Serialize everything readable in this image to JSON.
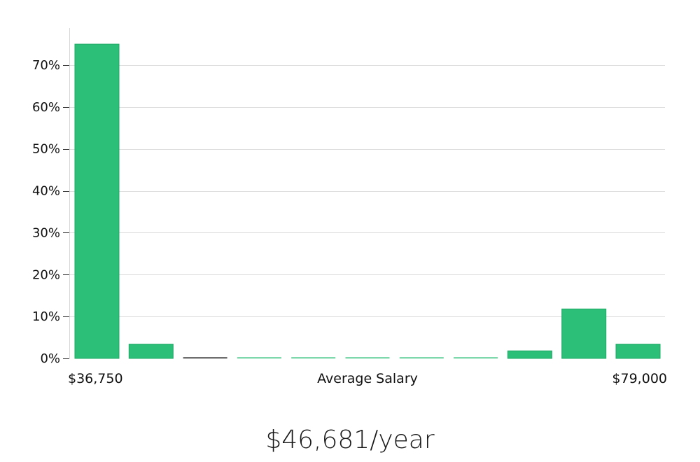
{
  "summary": "$46,681/year",
  "chart_data": {
    "type": "bar",
    "title": "",
    "xlabel": "Average Salary",
    "ylabel": "",
    "x_min_label": "$36,750",
    "x_max_label": "$79,000",
    "ylim": [
      0,
      79
    ],
    "yticks": [
      0,
      10,
      20,
      30,
      40,
      50,
      60,
      70
    ],
    "ytick_labels": [
      "0%",
      "10%",
      "20%",
      "30%",
      "40%",
      "50%",
      "60%",
      "70%"
    ],
    "grid": true,
    "values": [
      75,
      3.4,
      0,
      0,
      0,
      0,
      0,
      0,
      1.8,
      11.8,
      3.4
    ],
    "bar_color": "#2bbf77",
    "bar_edge_color": "#1fa866",
    "zero_bar_color": "#111111"
  }
}
